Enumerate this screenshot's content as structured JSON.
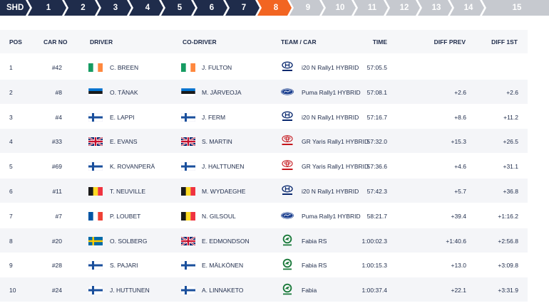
{
  "stages": {
    "shd": "SHD",
    "items": [
      "1",
      "2",
      "3",
      "4",
      "5",
      "6",
      "7",
      "8",
      "9",
      "10",
      "11",
      "12",
      "13",
      "14",
      "15"
    ],
    "active": "8"
  },
  "table": {
    "headers": {
      "pos": "POS",
      "car_no": "CAR NO",
      "driver": "DRIVER",
      "co_driver": "CO-DRIVER",
      "team_car": "TEAM / CAR",
      "time": "TIME",
      "diff_prev": "DIFF PREV",
      "diff_first": "DIFF 1ST"
    },
    "rows": [
      {
        "pos": "1",
        "car_no": "#42",
        "driver_flag": "ireland-flag",
        "driver": "C. BREEN",
        "codriver_flag": "ireland-flag",
        "codriver": "J. FULTON",
        "brand": "hyundai-logo",
        "car": "i20 N Rally1 HYBRID",
        "time": "57:05.5",
        "diff_prev": "",
        "diff_first": ""
      },
      {
        "pos": "2",
        "car_no": "#8",
        "driver_flag": "estonia-flag",
        "driver": "O. TÄNAK",
        "codriver_flag": "estonia-flag",
        "codriver": "M. JÄRVEOJA",
        "brand": "ford-logo",
        "car": "Puma Rally1 HYBRID",
        "time": "57:08.1",
        "diff_prev": "+2.6",
        "diff_first": "+2.6"
      },
      {
        "pos": "3",
        "car_no": "#4",
        "driver_flag": "finland-flag",
        "driver": "E. LAPPI",
        "codriver_flag": "finland-flag",
        "codriver": "J. FERM",
        "brand": "hyundai-logo",
        "car": "i20 N Rally1 HYBRID",
        "time": "57:16.7",
        "diff_prev": "+8.6",
        "diff_first": "+11.2"
      },
      {
        "pos": "4",
        "car_no": "#33",
        "driver_flag": "uk-flag",
        "driver": "E. EVANS",
        "codriver_flag": "uk-flag",
        "codriver": "S. MARTIN",
        "brand": "toyota-logo",
        "car": "GR Yaris Rally1 HYBRID",
        "time": "57:32.0",
        "diff_prev": "+15.3",
        "diff_first": "+26.5"
      },
      {
        "pos": "5",
        "car_no": "#69",
        "driver_flag": "finland-flag",
        "driver": "K. ROVANPERÄ",
        "codriver_flag": "finland-flag",
        "codriver": "J. HALTTUNEN",
        "brand": "toyota-logo",
        "car": "GR Yaris Rally1 HYBRID",
        "time": "57:36.6",
        "diff_prev": "+4.6",
        "diff_first": "+31.1"
      },
      {
        "pos": "6",
        "car_no": "#11",
        "driver_flag": "belgium-flag",
        "driver": "T. NEUVILLE",
        "codriver_flag": "belgium-flag",
        "codriver": "M. WYDAEGHE",
        "brand": "hyundai-logo",
        "car": "i20 N Rally1 HYBRID",
        "time": "57:42.3",
        "diff_prev": "+5.7",
        "diff_first": "+36.8"
      },
      {
        "pos": "7",
        "car_no": "#7",
        "driver_flag": "france-flag",
        "driver": "P. LOUBET",
        "codriver_flag": "belgium-flag",
        "codriver": "N. GILSOUL",
        "brand": "ford-logo",
        "car": "Puma Rally1 HYBRID",
        "time": "58:21.7",
        "diff_prev": "+39.4",
        "diff_first": "+1:16.2"
      },
      {
        "pos": "8",
        "car_no": "#20",
        "driver_flag": "sweden-flag",
        "driver": "O. SOLBERG",
        "codriver_flag": "uk-flag",
        "codriver": "E. EDMONDSON",
        "brand": "skoda-logo",
        "car": "Fabia RS",
        "time": "1:00:02.3",
        "diff_prev": "+1:40.6",
        "diff_first": "+2:56.8"
      },
      {
        "pos": "9",
        "car_no": "#28",
        "driver_flag": "finland-flag",
        "driver": "S. PAJARI",
        "codriver_flag": "finland-flag",
        "codriver": "E. MÄLKÖNEN",
        "brand": "skoda-logo",
        "car": "Fabia RS",
        "time": "1:00:15.3",
        "diff_prev": "+13.0",
        "diff_first": "+3:09.8"
      },
      {
        "pos": "10",
        "car_no": "#24",
        "driver_flag": "finland-flag",
        "driver": "J. HUTTUNEN",
        "codriver_flag": "finland-flag",
        "codriver": "A. LINNAKETO",
        "brand": "skoda-logo",
        "car": "Fabia",
        "time": "1:00:37.4",
        "diff_prev": "+22.1",
        "diff_first": "+3:31.9"
      }
    ]
  },
  "colors": {
    "tab_dark": "#1f2c4b",
    "tab_active": "#f26522",
    "tab_inactive": "#c6c9cf",
    "text": "#1f2c4b"
  }
}
